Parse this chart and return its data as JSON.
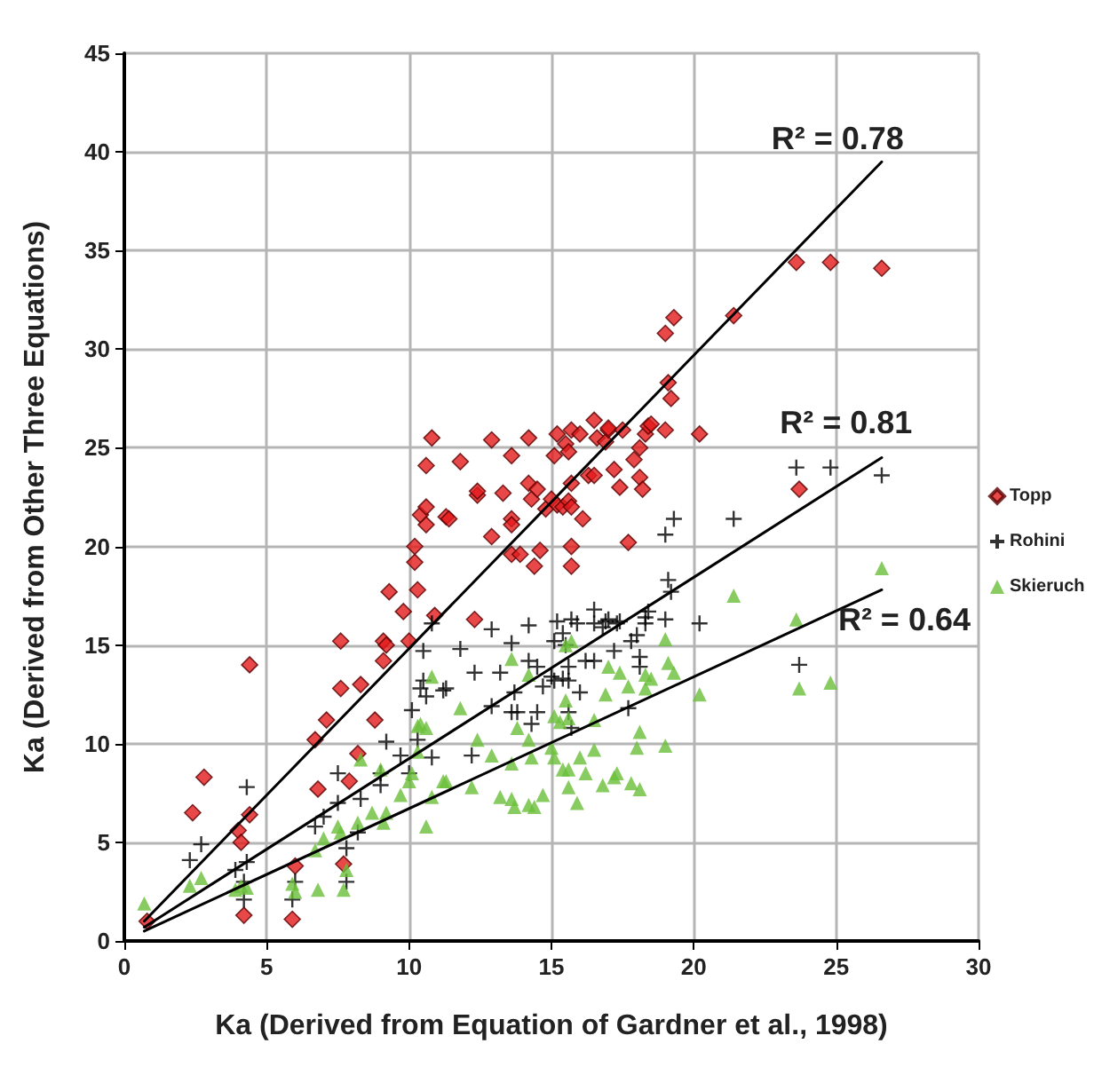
{
  "chart_data": {
    "type": "scatter",
    "xlabel": "Ka (Derived from Equation of Gardner et al., 1998)",
    "ylabel": "Ka (Derived from Other Three Equations)",
    "xlim": [
      0,
      30
    ],
    "xticks": [
      0,
      5,
      10,
      15,
      20,
      25,
      30
    ],
    "ylim": [
      0,
      45
    ],
    "yticks": [
      0,
      5,
      10,
      15,
      20,
      25,
      30,
      35,
      40,
      45
    ],
    "grid": true,
    "legend": "right",
    "series": [
      {
        "name": "Topp",
        "color": "#e41a1c",
        "marker": "diamond",
        "x": [
          0.8,
          2.4,
          2.8,
          4.4,
          4.4,
          4.0,
          4.1,
          4.2,
          6.0,
          5.9,
          7.7,
          6.7,
          7.1,
          6.8,
          7.9,
          8.2,
          7.6,
          8.3,
          8.8,
          7.6,
          9.1,
          9.2,
          9.1,
          9.3,
          9.8,
          10.0,
          10.3,
          10.9,
          10.2,
          10.2,
          10.4,
          10.6,
          10.6,
          10.6,
          10.8,
          11.3,
          11.8,
          11.4,
          12.3,
          12.4,
          12.4,
          12.9,
          12.9,
          13.3,
          13.6,
          13.6,
          13.6,
          13.6,
          13.9,
          14.2,
          14.2,
          14.3,
          14.5,
          14.4,
          14.6,
          14.8,
          15.0,
          15.2,
          15.2,
          15.1,
          15.5,
          15.6,
          15.7,
          16.0,
          15.4,
          15.6,
          15.7,
          15.7,
          15.7,
          15.7,
          16.1,
          16.3,
          16.5,
          16.5,
          16.6,
          16.9,
          17.0,
          17.0,
          17.2,
          17.4,
          17.5,
          17.7,
          17.9,
          18.1,
          18.1,
          18.2,
          18.3,
          18.4,
          18.5,
          19.0,
          19.0,
          19.3,
          19.1,
          19.2,
          20.2,
          21.4,
          23.6,
          24.8,
          26.6,
          23.7
        ],
        "values": [
          1.0,
          6.5,
          8.3,
          14.0,
          6.4,
          5.6,
          5.0,
          1.3,
          3.8,
          1.1,
          3.9,
          10.2,
          11.2,
          7.7,
          8.1,
          9.5,
          12.8,
          13.0,
          11.2,
          15.2,
          15.2,
          15.0,
          14.2,
          17.7,
          16.7,
          15.2,
          17.8,
          16.5,
          19.2,
          20.0,
          21.6,
          22.0,
          21.1,
          24.1,
          25.5,
          21.5,
          24.3,
          21.4,
          16.3,
          22.6,
          22.8,
          20.5,
          25.4,
          22.7,
          24.6,
          21.4,
          21.1,
          19.6,
          19.6,
          25.5,
          23.2,
          22.4,
          22.9,
          19.0,
          19.8,
          21.9,
          22.4,
          22.1,
          25.7,
          24.6,
          25.2,
          24.8,
          25.9,
          25.7,
          22.0,
          22.3,
          22.0,
          23.2,
          20.0,
          19.0,
          21.4,
          23.6,
          23.6,
          26.4,
          25.5,
          25.3,
          25.9,
          26.0,
          23.9,
          23.0,
          25.9,
          20.2,
          24.4,
          25.0,
          23.5,
          22.9,
          25.7,
          26.1,
          26.2,
          25.9,
          30.8,
          31.6,
          28.3,
          27.5,
          25.7,
          31.7,
          34.4,
          34.4,
          34.1,
          22.9
        ]
      },
      {
        "name": "Rohini",
        "color": "#000000",
        "marker": "cross",
        "x": [
          2.3,
          2.7,
          4.3,
          3.9,
          4.2,
          4.2,
          4.3,
          5.9,
          6.0,
          6.7,
          7.0,
          7.5,
          7.5,
          7.8,
          8.2,
          8.3,
          9.0,
          9.0,
          9.2,
          9.7,
          10.0,
          10.1,
          10.3,
          10.4,
          10.5,
          10.6,
          10.8,
          11.2,
          10.5,
          10.8,
          11.8,
          7.8,
          11.3,
          12.2,
          12.3,
          12.9,
          12.9,
          13.2,
          13.6,
          13.7,
          13.6,
          13.8,
          14.2,
          14.2,
          14.5,
          14.3,
          14.5,
          14.7,
          15.0,
          15.1,
          15.4,
          15.6,
          15.2,
          15.1,
          15.4,
          15.5,
          15.7,
          15.9,
          15.6,
          15.6,
          15.7,
          16.0,
          16.2,
          16.5,
          16.5,
          16.5,
          16.8,
          16.9,
          17.0,
          17.2,
          17.3,
          17.4,
          17.7,
          17.8,
          18.0,
          18.1,
          18.1,
          18.3,
          18.3,
          18.4,
          19.0,
          19.0,
          19.3,
          19.1,
          19.2,
          20.2,
          21.4,
          23.6,
          24.8,
          26.6,
          23.7
        ],
        "values": [
          4.1,
          4.9,
          7.8,
          3.6,
          3.0,
          2.1,
          4.0,
          2.1,
          3.0,
          5.8,
          6.3,
          8.5,
          7.0,
          4.7,
          5.5,
          7.2,
          8.5,
          7.9,
          10.1,
          9.4,
          8.5,
          11.7,
          10.2,
          12.8,
          13.2,
          12.4,
          9.3,
          12.7,
          14.7,
          16.1,
          14.8,
          3.0,
          12.8,
          9.4,
          13.6,
          11.9,
          15.8,
          13.6,
          15.1,
          12.6,
          11.6,
          11.6,
          16.0,
          14.2,
          13.9,
          11.0,
          11.6,
          12.9,
          13.4,
          13.2,
          13.3,
          13.2,
          16.2,
          15.2,
          15.6,
          15.0,
          16.3,
          16.1,
          13.9,
          11.6,
          10.8,
          12.6,
          14.2,
          14.2,
          16.8,
          16.1,
          15.9,
          16.2,
          16.3,
          14.7,
          16.1,
          16.2,
          11.8,
          15.2,
          15.5,
          14.4,
          13.9,
          16.1,
          16.4,
          16.7,
          16.3,
          20.6,
          21.4,
          18.3,
          17.7,
          16.1,
          21.4,
          24.0,
          24.0,
          23.6,
          14.0
        ]
      },
      {
        "name": "Skieruch",
        "color": "#6abf3a",
        "marker": "triangle",
        "x": [
          0.7,
          2.3,
          2.7,
          3.9,
          4.1,
          4.3,
          5.9,
          6.0,
          6.8,
          6.7,
          7.0,
          7.6,
          7.5,
          7.7,
          7.8,
          8.2,
          8.3,
          8.7,
          9.1,
          9.2,
          9.0,
          9.7,
          10.0,
          10.1,
          10.3,
          10.3,
          10.4,
          10.6,
          10.8,
          10.8,
          10.6,
          11.2,
          11.8,
          11.3,
          12.2,
          12.4,
          12.9,
          13.2,
          13.6,
          13.6,
          13.6,
          13.7,
          13.8,
          14.2,
          14.4,
          14.7,
          14.3,
          14.2,
          14.2,
          15.0,
          15.1,
          15.4,
          15.6,
          15.1,
          15.3,
          15.5,
          15.6,
          15.5,
          15.7,
          15.6,
          15.9,
          16.0,
          16.2,
          16.5,
          16.5,
          16.9,
          17.0,
          16.8,
          17.2,
          17.3,
          17.4,
          17.7,
          17.8,
          18.1,
          18.0,
          18.1,
          18.3,
          18.5,
          18.3,
          19.0,
          19.0,
          19.1,
          19.3,
          20.2,
          21.4,
          23.6,
          23.7,
          24.8,
          26.6
        ],
        "values": [
          1.9,
          2.8,
          3.2,
          2.6,
          2.8,
          2.7,
          2.9,
          2.5,
          2.6,
          4.6,
          5.2,
          5.5,
          5.8,
          2.6,
          3.6,
          6.0,
          9.2,
          6.5,
          6.0,
          6.5,
          8.7,
          7.4,
          8.1,
          8.5,
          9.6,
          10.9,
          11.0,
          10.8,
          13.4,
          7.3,
          5.8,
          8.1,
          11.8,
          8.1,
          7.8,
          10.2,
          9.4,
          7.3,
          9.0,
          14.3,
          7.2,
          6.8,
          10.8,
          6.9,
          6.8,
          7.4,
          9.3,
          10.2,
          13.5,
          9.8,
          9.3,
          8.7,
          8.7,
          11.4,
          11.1,
          12.2,
          11.3,
          15.0,
          15.2,
          7.8,
          7.0,
          9.3,
          8.5,
          11.2,
          9.7,
          12.5,
          13.9,
          7.9,
          8.3,
          8.5,
          13.6,
          12.9,
          8.0,
          7.7,
          9.8,
          10.6,
          13.5,
          13.3,
          12.8,
          9.9,
          15.3,
          14.1,
          13.6,
          12.5,
          17.5,
          16.3,
          12.8,
          13.1,
          18.9
        ]
      },
      {
        "type": "line",
        "color": "#000000",
        "marker": "none",
        "x": [
          0.7,
          26.6
        ],
        "values": [
          1.0,
          39.5
        ]
      },
      {
        "type": "line",
        "color": "#000000",
        "marker": "none",
        "x": [
          0.7,
          26.6
        ],
        "values": [
          0.7,
          24.5
        ]
      },
      {
        "type": "line",
        "color": "#000000",
        "marker": "none",
        "x": [
          0.7,
          26.6
        ],
        "values": [
          0.5,
          17.8
        ]
      }
    ],
    "annotations": [
      {
        "text": "R² = 0.78",
        "x": 26.0,
        "y": 38.6
      },
      {
        "text": "R² = 0.81",
        "x": 26.3,
        "y": 24.2
      },
      {
        "text": "R² = 0.64",
        "x": 26.6,
        "y": 17.8
      }
    ]
  }
}
